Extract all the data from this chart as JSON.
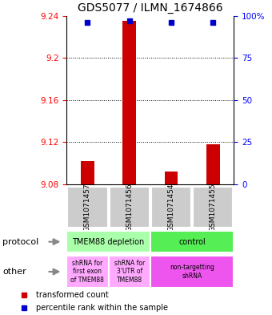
{
  "title": "GDS5077 / ILMN_1674866",
  "samples": [
    "GSM1071457",
    "GSM1071456",
    "GSM1071454",
    "GSM1071455"
  ],
  "bar_values": [
    9.102,
    9.235,
    9.092,
    9.118
  ],
  "bar_base": 9.08,
  "percentile_values": [
    96,
    97,
    96,
    96
  ],
  "ylim_left": [
    9.08,
    9.24
  ],
  "ylim_right": [
    0,
    100
  ],
  "yticks_left": [
    9.08,
    9.12,
    9.16,
    9.2,
    9.24
  ],
  "ytick_labels_left": [
    "9.08",
    "9.12",
    "9.16",
    "9.2",
    "9.24"
  ],
  "yticks_right": [
    0,
    25,
    50,
    75,
    100
  ],
  "ytick_labels_right": [
    "0",
    "25",
    "50",
    "75",
    "100%"
  ],
  "bar_color": "#cc0000",
  "percentile_color": "#0000cc",
  "protocol_labels": [
    "TMEM88 depletion",
    "control"
  ],
  "protocol_colors": [
    "#aaffaa",
    "#55ee55"
  ],
  "other_labels": [
    "shRNA for\nfirst exon\nof TMEM88",
    "shRNA for\n3'UTR of\nTMEM88",
    "non-targetting\nshRNA"
  ],
  "other_colors": [
    "#ffaaff",
    "#ffaaff",
    "#ee55ee"
  ],
  "sample_bg_color": "#cccccc",
  "title_fontsize": 10,
  "tick_fontsize": 7.5,
  "sample_fontsize": 6.5,
  "legend_fontsize": 7,
  "label_fontsize": 8
}
